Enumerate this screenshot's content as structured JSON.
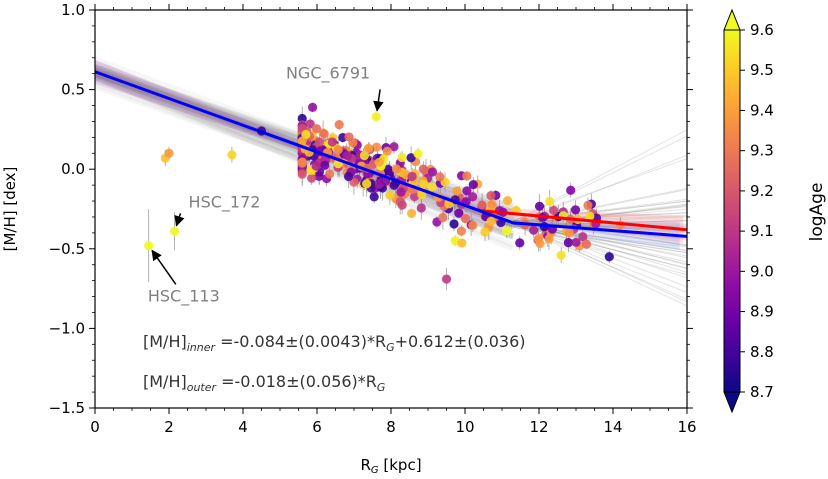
{
  "chart_data": {
    "type": "scatter",
    "xlabel": "R",
    "xlabel_sub": "G",
    "xlabel_unit": " [kpc]",
    "ylabel": "[M/H] [dex]",
    "xlim": [
      0,
      16
    ],
    "ylim": [
      -1.5,
      1.0
    ],
    "x_ticks": [
      0,
      2,
      4,
      6,
      8,
      10,
      12,
      14,
      16
    ],
    "x_tick_labels": [
      "0",
      "2",
      "4",
      "6",
      "8",
      "10",
      "12",
      "14",
      "16"
    ],
    "y_ticks": [
      -1.5,
      -1.0,
      -0.5,
      0.0,
      0.5,
      1.0
    ],
    "y_tick_labels": [
      "−1.5",
      "−1.0",
      "−0.5",
      "0.0",
      "0.5",
      "1.0"
    ],
    "colorbar": {
      "label": "logAge",
      "range": [
        8.7,
        9.6
      ],
      "ticks": [
        8.7,
        8.8,
        8.9,
        9.0,
        9.1,
        9.2,
        9.3,
        9.4,
        9.5,
        9.6
      ],
      "tick_labels": [
        "8.7",
        "8.8",
        "8.9",
        "9.0",
        "9.1",
        "9.2",
        "9.3",
        "9.4",
        "9.5",
        "9.6"
      ],
      "colormap": [
        "#0d0887",
        "#3e049c",
        "#6a00a8",
        "#900da4",
        "#b12a90",
        "#cc4778",
        "#e16462",
        "#f2844b",
        "#fca636",
        "#fcce25",
        "#f0f921"
      ],
      "extend": "both"
    },
    "fits": {
      "inner": {
        "slope": -0.084,
        "intercept": 0.612,
        "x_range": [
          0,
          11.3
        ],
        "color": "#0000ff"
      },
      "outer": {
        "slope": -0.018,
        "intercept_at_break": -0.337,
        "break_x": 11.3,
        "x_range": [
          11.3,
          16
        ],
        "color": "#0000ff"
      },
      "alt_outer": {
        "points": [
          [
            10.4,
            -0.26
          ],
          [
            16,
            -0.38
          ]
        ],
        "color": "#ff0000"
      }
    },
    "equations": {
      "inner": {
        "lhs": "[M/H]",
        "sub": "inner",
        "rhs": " =-0.084±(0.0043)*R",
        "sub2": "G",
        "rhs2": "+0.612±(0.036)"
      },
      "outer": {
        "lhs": "[M/H]",
        "sub": "outer",
        "rhs": " =-0.018±(0.056)*R",
        "sub2": "G",
        "rhs2": ""
      }
    },
    "annotations": [
      {
        "text": "NGC_6791",
        "point": [
          7.6,
          0.33
        ],
        "text_at": [
          6.3,
          0.57
        ]
      },
      {
        "text": "HSC_172",
        "point": [
          2.15,
          -0.39
        ],
        "text_at": [
          3.5,
          -0.24
        ]
      },
      {
        "text": "HSC_113",
        "point": [
          1.45,
          -0.48
        ],
        "text_at": [
          2.4,
          -0.83
        ]
      }
    ],
    "highlight_points": [
      {
        "x": 7.6,
        "y": 0.33,
        "age": 9.58,
        "err": 0.02
      },
      {
        "x": 2.15,
        "y": -0.39,
        "age": 9.6,
        "err": 0.12
      },
      {
        "x": 1.45,
        "y": -0.48,
        "age": 9.6,
        "err": 0.23
      },
      {
        "x": 1.9,
        "y": 0.07,
        "age": 9.48,
        "err": 0.05
      },
      {
        "x": 2.0,
        "y": 0.1,
        "age": 9.38,
        "err": 0.04
      },
      {
        "x": 3.7,
        "y": 0.09,
        "age": 9.52,
        "err": 0.05
      },
      {
        "x": 4.5,
        "y": 0.24,
        "age": 8.78,
        "err": 0.02
      },
      {
        "x": 9.5,
        "y": -0.69,
        "age": 9.1,
        "err": 0.07
      },
      {
        "x": 13.9,
        "y": -0.55,
        "age": 8.75,
        "err": 0.04
      },
      {
        "x": 14.2,
        "y": -0.35,
        "age": 9.35,
        "err": 0.05
      },
      {
        "x": 12.6,
        "y": -0.54,
        "age": 9.55,
        "err": 0.05
      },
      {
        "x": 13.0,
        "y": -0.46,
        "age": 9.0,
        "err": 0.05
      },
      {
        "x": 6.6,
        "y": 0.28,
        "age": 9.3,
        "err": 0.03
      }
    ],
    "cluster_cloud": {
      "count": 360,
      "x_range": [
        5.6,
        13.6
      ],
      "scatter_dex": 0.085,
      "age_range": [
        8.75,
        9.6
      ],
      "note": "open clusters scattered around the inner gradient"
    }
  }
}
